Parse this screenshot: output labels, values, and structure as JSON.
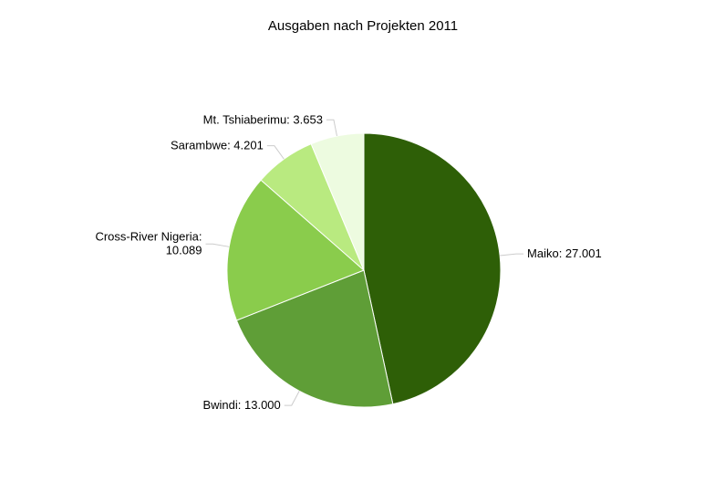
{
  "chart_data": {
    "type": "pie",
    "title": "Ausgaben nach Projekten 2011",
    "categories": [
      "Maiko",
      "Bwindi",
      "Cross-River Nigeria",
      "Sarambwe",
      "Mt. Tshiaberimu"
    ],
    "values": [
      27001,
      13000,
      10089,
      4201,
      3653
    ],
    "labels": [
      [
        "Maiko: 27.001"
      ],
      [
        "Bwindi: 13.000"
      ],
      [
        "Cross-River Nigeria:",
        "10.089"
      ],
      [
        "Sarambwe: 4.201"
      ],
      [
        "Mt. Tshiaberimu: 3.653"
      ]
    ],
    "colors": [
      "#2e5f07",
      "#5f9e37",
      "#8acc4c",
      "#b9ea80",
      "#edfbe0"
    ],
    "start_angle_deg": 0,
    "direction": "clockwise"
  }
}
